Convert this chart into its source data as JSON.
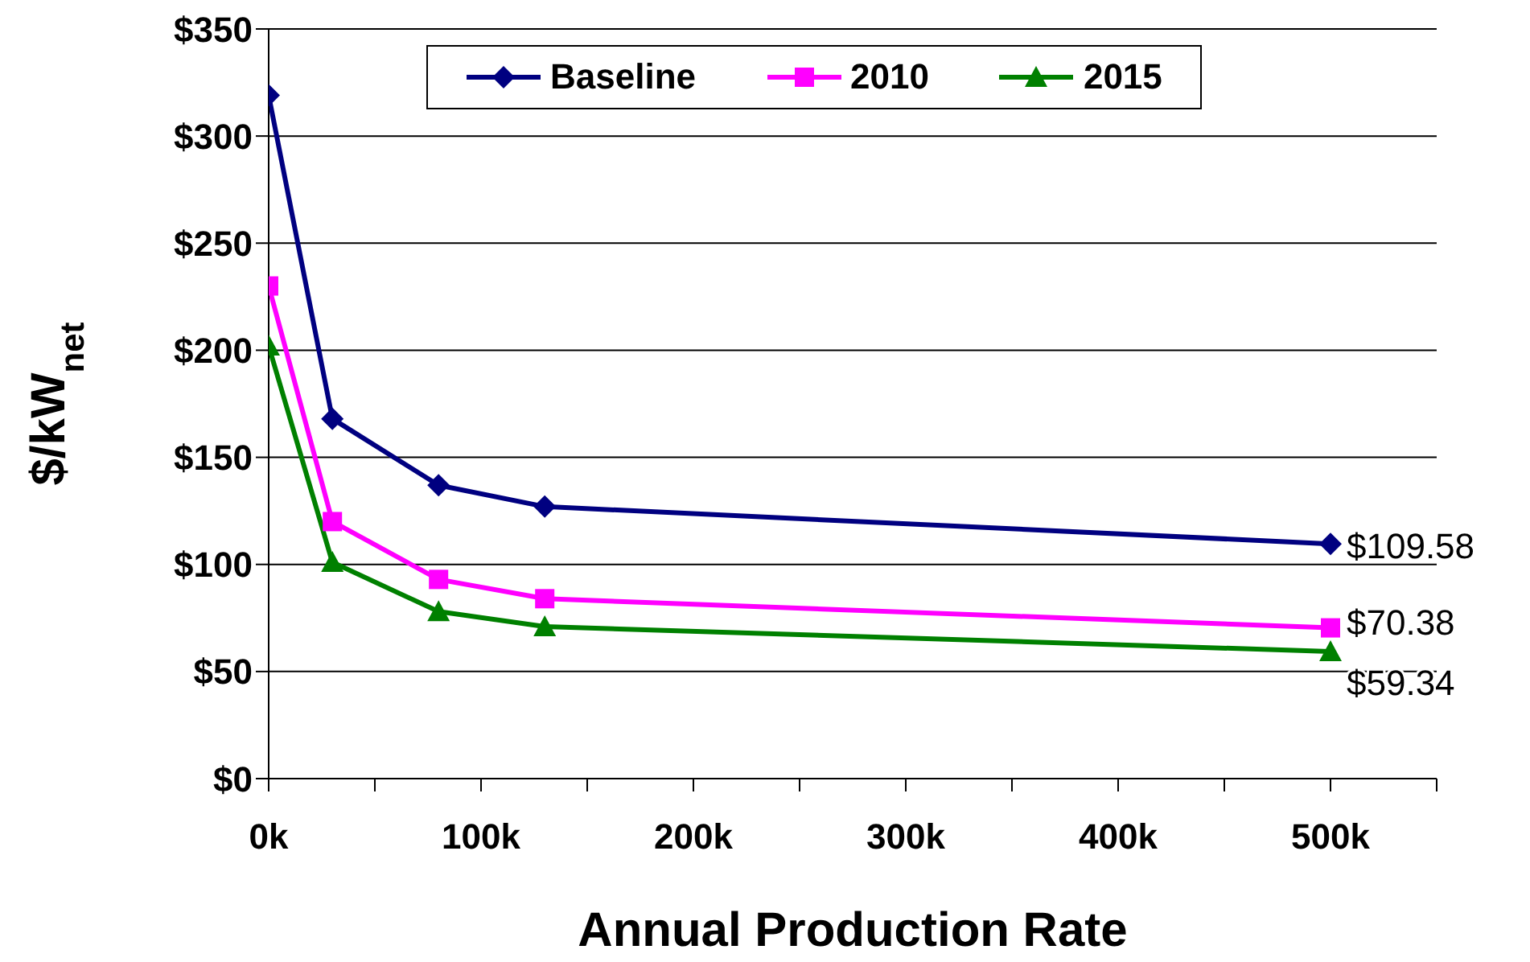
{
  "chart_data": {
    "type": "line",
    "xlabel": "Annual Production Rate",
    "ylabel": "$/kW$_{net}$",
    "x": [
      0,
      30000,
      80000,
      130000,
      500000
    ],
    "series": [
      {
        "name": "Baseline",
        "color": "#000080",
        "marker": "diamond",
        "values": [
          319,
          168,
          137,
          127,
          109.58
        ],
        "value_labels": [
          null,
          null,
          null,
          null,
          "$109.58"
        ]
      },
      {
        "name": "2010",
        "color": "#ff00ff",
        "marker": "square",
        "values": [
          230,
          120,
          93,
          84,
          70.38
        ],
        "value_labels": [
          null,
          null,
          null,
          null,
          "$70.38"
        ]
      },
      {
        "name": "2015",
        "color": "#008000",
        "marker": "triangle",
        "values": [
          202,
          101,
          78,
          71,
          59.34
        ],
        "value_labels": [
          null,
          null,
          null,
          null,
          "$59.34"
        ]
      }
    ],
    "xlim": [
      0,
      550000
    ],
    "xticks": [
      {
        "value": 0,
        "label": "0k"
      },
      {
        "value": 50000,
        "label": null
      },
      {
        "value": 100000,
        "label": "100k"
      },
      {
        "value": 150000,
        "label": null
      },
      {
        "value": 200000,
        "label": "200k"
      },
      {
        "value": 250000,
        "label": null
      },
      {
        "value": 300000,
        "label": "300k"
      },
      {
        "value": 350000,
        "label": null
      },
      {
        "value": 400000,
        "label": "400k"
      },
      {
        "value": 450000,
        "label": null
      },
      {
        "value": 500000,
        "label": "500k"
      },
      {
        "value": 550000,
        "label": null
      }
    ],
    "ylim": [
      0,
      350
    ],
    "yticks": [
      {
        "value": 0,
        "label": "$0"
      },
      {
        "value": 50,
        "label": "$50"
      },
      {
        "value": 100,
        "label": "$100"
      },
      {
        "value": 150,
        "label": "$150"
      },
      {
        "value": 200,
        "label": "$200"
      },
      {
        "value": 250,
        "label": "$250"
      },
      {
        "value": 300,
        "label": "$300"
      },
      {
        "value": 350,
        "label": "$350"
      }
    ],
    "grid": "y",
    "legend": "top",
    "line_style": "solid"
  }
}
